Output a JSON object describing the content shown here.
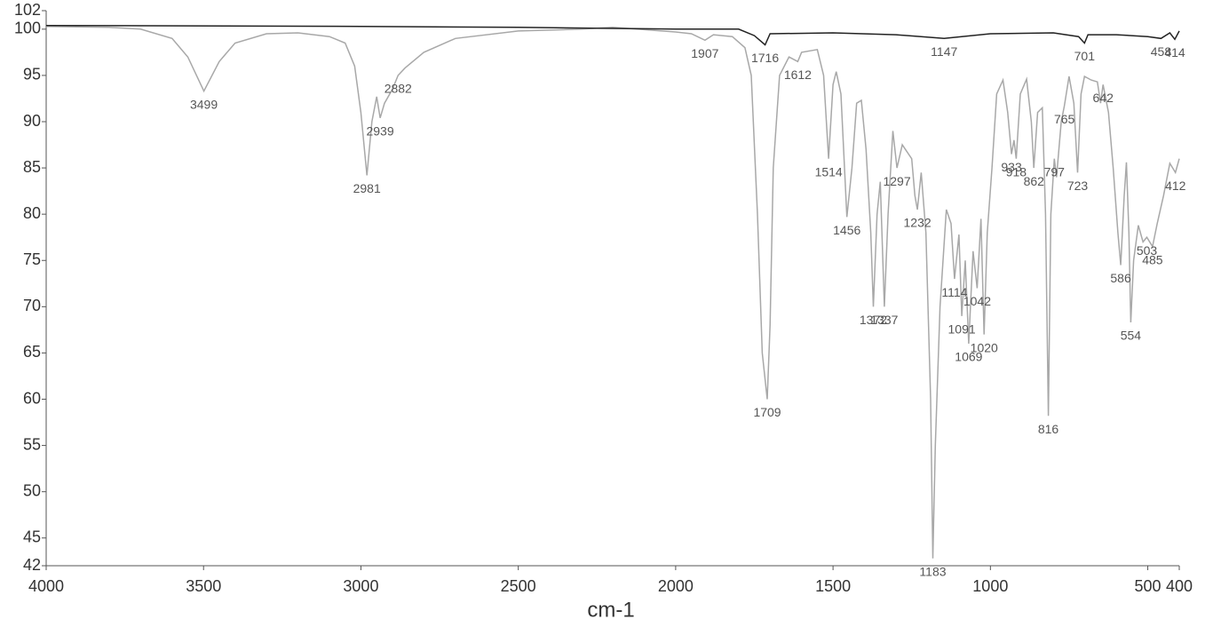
{
  "chart_data": {
    "type": "line",
    "x_label": "cm-1",
    "xlim": [
      4000,
      400
    ],
    "ylim": [
      42,
      102
    ],
    "xticks": [
      4000,
      3500,
      3000,
      2500,
      2000,
      1500,
      1000,
      500,
      400
    ],
    "yticks": [
      42,
      45,
      50,
      55,
      60,
      65,
      70,
      75,
      80,
      85,
      90,
      95,
      100,
      102
    ],
    "series": [
      {
        "color": "#a8a8a8",
        "x": [
          4000,
          3800,
          3700,
          3600,
          3550,
          3499,
          3450,
          3400,
          3300,
          3200,
          3100,
          3050,
          3020,
          3000,
          2981,
          2965,
          2950,
          2939,
          2925,
          2900,
          2882,
          2860,
          2800,
          2700,
          2500,
          2300,
          2200,
          2000,
          1950,
          1907,
          1880,
          1820,
          1780,
          1760,
          1740,
          1725,
          1709,
          1700,
          1690,
          1670,
          1640,
          1612,
          1600,
          1550,
          1530,
          1514,
          1500,
          1490,
          1475,
          1456,
          1440,
          1425,
          1410,
          1395,
          1380,
          1372,
          1360,
          1350,
          1337,
          1325,
          1310,
          1297,
          1280,
          1250,
          1240,
          1232,
          1220,
          1205,
          1190,
          1183,
          1175,
          1160,
          1140,
          1125,
          1114,
          1100,
          1091,
          1080,
          1069,
          1055,
          1042,
          1030,
          1020,
          1010,
          995,
          980,
          960,
          945,
          933,
          925,
          918,
          905,
          885,
          870,
          862,
          850,
          835,
          825,
          816,
          808,
          797,
          790,
          775,
          765,
          750,
          735,
          723,
          712,
          701,
          680,
          660,
          650,
          642,
          625,
          610,
          595,
          586,
          575,
          568,
          560,
          554,
          545,
          530,
          515,
          503,
          485,
          470,
          450,
          430,
          412,
          400
        ],
        "values": [
          100.3,
          100.2,
          100,
          99,
          97,
          93.3,
          96.5,
          98.5,
          99.5,
          99.6,
          99.2,
          98.5,
          96,
          91,
          84.2,
          90,
          92.7,
          90.4,
          92,
          93.5,
          95,
          95.8,
          97.5,
          99,
          99.8,
          100,
          100.2,
          99.7,
          99.5,
          98.8,
          99.4,
          99.2,
          98,
          95,
          80,
          65,
          60,
          68,
          85,
          95,
          97,
          96.5,
          97.5,
          97.8,
          95,
          86,
          94,
          95.4,
          93,
          79.7,
          85,
          92,
          92.3,
          87,
          78,
          70,
          80,
          83.5,
          70,
          80,
          89,
          85,
          87.5,
          86,
          82,
          80.5,
          84.5,
          78,
          60,
          42.8,
          55,
          70,
          80.5,
          79,
          73,
          77.8,
          69,
          75,
          66,
          76,
          72,
          79.5,
          67,
          78,
          85,
          93,
          94.5,
          91,
          86.5,
          88,
          86,
          93,
          94.6,
          90,
          85,
          91,
          91.5,
          80,
          58.2,
          80,
          86,
          84,
          90,
          91.7,
          94.9,
          92,
          84.5,
          93,
          94.9,
          94.5,
          94.3,
          92,
          94,
          91,
          85,
          78,
          74.5,
          82,
          85.6,
          78,
          68.3,
          75,
          78.8,
          77,
          77.5,
          76.5,
          79,
          82,
          85.5,
          84.5,
          86
        ],
        "peaks": [
          3499,
          2981,
          2939,
          2882,
          1907,
          1709,
          1612,
          1514,
          1456,
          1372,
          1337,
          1297,
          1232,
          1183,
          1114,
          1091,
          1069,
          1042,
          1020,
          933,
          918,
          862,
          816,
          797,
          765,
          723,
          642,
          586,
          554,
          503,
          485,
          412
        ]
      },
      {
        "color": "#222222",
        "x": [
          4000,
          3000,
          2500,
          2000,
          1800,
          1750,
          1716,
          1700,
          1500,
          1300,
          1147,
          1000,
          800,
          720,
          701,
          690,
          600,
          500,
          458,
          430,
          414,
          400
        ],
        "values": [
          100.4,
          100.3,
          100.2,
          100,
          100,
          99.3,
          98.3,
          99.5,
          99.6,
          99.4,
          99,
          99.5,
          99.6,
          99.2,
          98.5,
          99.4,
          99.4,
          99.2,
          99,
          99.6,
          98.9,
          99.8
        ],
        "peaks": [
          1716,
          1147,
          701,
          458,
          414
        ]
      }
    ]
  }
}
